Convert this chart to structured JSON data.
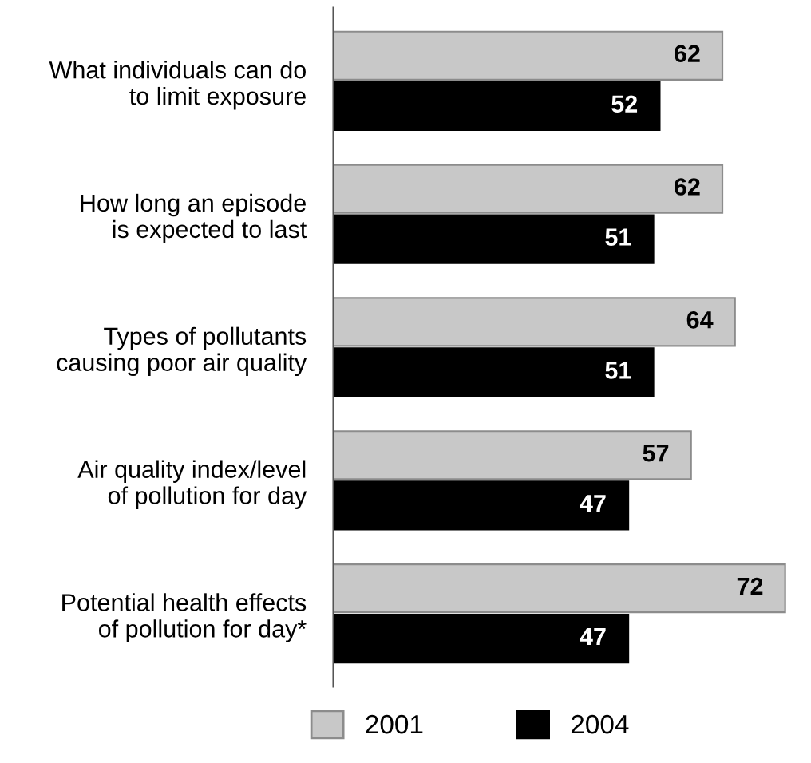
{
  "chart_data": {
    "type": "bar",
    "orientation": "horizontal",
    "categories": [
      "What individuals can do\nto limit exposure",
      "How long an episode\nis expected to last",
      "Types of pollutants\ncausing poor air quality",
      "Air quality index/level\nof pollution for day",
      "Potential health effects\nof pollution for day*"
    ],
    "series": [
      {
        "name": "2001",
        "color": "#c8c8c8",
        "values": [
          62,
          62,
          64,
          57,
          72
        ]
      },
      {
        "name": "2004",
        "color": "#000000",
        "values": [
          52,
          51,
          51,
          47,
          47
        ]
      }
    ],
    "data_labels": true,
    "legend": "bottom",
    "grid": false
  }
}
